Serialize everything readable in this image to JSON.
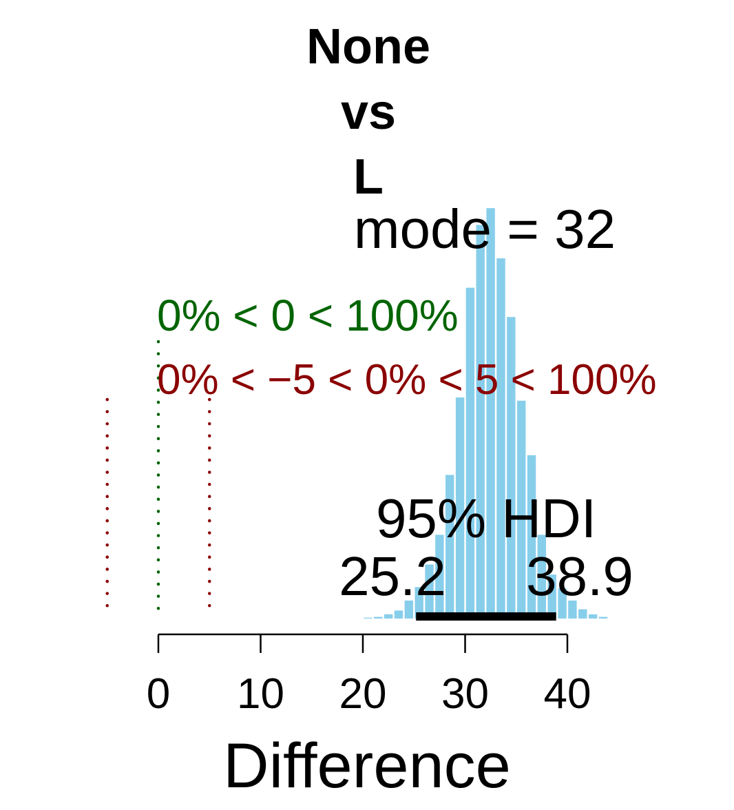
{
  "chart_data": {
    "type": "bar",
    "title_lines": [
      "None",
      "vs",
      "L"
    ],
    "xlabel": "Difference",
    "ylabel": "",
    "xlim": [
      0,
      44
    ],
    "x_ticks": [
      0,
      10,
      20,
      30,
      40
    ],
    "x_tick_labels": [
      "0",
      "10",
      "20",
      "30",
      "40"
    ],
    "bin_width": 1,
    "bins": [
      {
        "x": 20.5,
        "density": 0.002
      },
      {
        "x": 21.5,
        "density": 0.004
      },
      {
        "x": 22.5,
        "density": 0.01
      },
      {
        "x": 23.5,
        "density": 0.019
      },
      {
        "x": 24.5,
        "density": 0.043
      },
      {
        "x": 25.5,
        "density": 0.075
      },
      {
        "x": 26.5,
        "density": 0.129
      },
      {
        "x": 27.5,
        "density": 0.2
      },
      {
        "x": 28.5,
        "density": 0.343
      },
      {
        "x": 29.5,
        "density": 0.528
      },
      {
        "x": 30.5,
        "density": 0.79
      },
      {
        "x": 31.5,
        "density": 0.94
      },
      {
        "x": 32.5,
        "density": 0.98
      },
      {
        "x": 33.5,
        "density": 0.86
      },
      {
        "x": 34.5,
        "density": 0.72
      },
      {
        "x": 35.5,
        "density": 0.52
      },
      {
        "x": 36.5,
        "density": 0.39
      },
      {
        "x": 37.5,
        "density": 0.2
      },
      {
        "x": 38.5,
        "density": 0.105
      },
      {
        "x": 39.5,
        "density": 0.072
      },
      {
        "x": 40.5,
        "density": 0.043
      },
      {
        "x": 41.5,
        "density": 0.022
      },
      {
        "x": 42.5,
        "density": 0.01
      },
      {
        "x": 43.5,
        "density": 0.004
      }
    ],
    "bar_color": "#87CEEB",
    "mode_label": "mode = 32",
    "compare_value": {
      "value": 0,
      "label": "0% < 0 < 100%",
      "color": "#006400"
    },
    "rope": {
      "low": -5,
      "high": 5,
      "label": "0% < −5 < 0% < 5 < 100%",
      "color": "#8B0000"
    },
    "hdi": {
      "label": "95% HDI",
      "low": 25.2,
      "high": 38.9,
      "low_label": "25.2",
      "high_label": "38.9",
      "color": "#000000"
    }
  }
}
